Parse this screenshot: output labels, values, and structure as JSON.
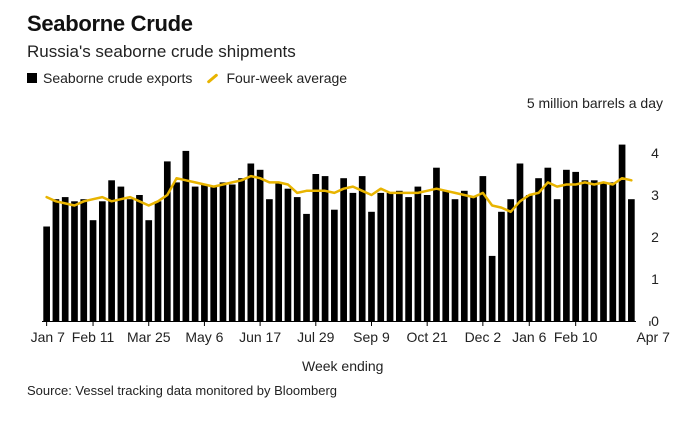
{
  "chart_data": {
    "type": "bar",
    "title": "Seaborne Crude",
    "subtitle": "Russia's seaborne crude shipments",
    "legend": {
      "bars_label": "Seaborne crude exports",
      "line_label": "Four-week average"
    },
    "unit_label": "5 million barrels a day",
    "xlabel": "Week ending",
    "ylabel": "",
    "ylim": [
      0,
      4.5
    ],
    "yticks": [
      "0",
      "1",
      "2",
      "3",
      "4"
    ],
    "xtick_labels": [
      {
        "label": "Jan 7",
        "index": 0
      },
      {
        "label": "Feb 11",
        "index": 5
      },
      {
        "label": "Mar 25",
        "index": 11
      },
      {
        "label": "May 6",
        "index": 17
      },
      {
        "label": "Jun 17",
        "index": 23
      },
      {
        "label": "Jul 29",
        "index": 29
      },
      {
        "label": "Sep 9",
        "index": 35
      },
      {
        "label": "Oct 21",
        "index": 41
      },
      {
        "label": "Dec 2",
        "index": 47
      },
      {
        "label": "Jan 6",
        "index": 52
      },
      {
        "label": "Feb 10",
        "index": 57
      },
      {
        "label": "Apr 7",
        "index": 65
      }
    ],
    "series": [
      {
        "name": "Seaborne crude exports",
        "kind": "bar",
        "color": "#000000",
        "values": [
          2.25,
          2.9,
          2.95,
          2.85,
          2.9,
          2.4,
          2.85,
          3.35,
          3.2,
          2.9,
          3.0,
          2.4,
          2.85,
          3.8,
          3.3,
          4.05,
          3.2,
          3.25,
          3.2,
          3.3,
          3.25,
          3.4,
          3.75,
          3.6,
          2.9,
          3.3,
          3.15,
          2.95,
          2.55,
          3.5,
          3.45,
          2.65,
          3.4,
          3.05,
          3.45,
          2.6,
          3.05,
          3.05,
          3.1,
          2.95,
          3.2,
          3.0,
          3.65,
          3.1,
          2.9,
          3.1,
          2.95,
          3.45,
          1.55,
          2.6,
          2.9,
          3.75,
          3.0,
          3.4,
          3.65,
          2.9,
          3.6,
          3.55,
          3.35,
          3.35,
          3.3,
          3.3,
          4.2,
          2.9
        ]
      },
      {
        "name": "Four-week average",
        "kind": "line",
        "color": "#e8b400",
        "values": [
          2.95,
          2.85,
          2.8,
          2.75,
          2.85,
          2.9,
          2.95,
          2.85,
          2.9,
          2.95,
          2.85,
          2.75,
          2.85,
          3.0,
          3.4,
          3.35,
          3.3,
          3.25,
          3.2,
          3.25,
          3.3,
          3.35,
          3.45,
          3.4,
          3.3,
          3.3,
          3.25,
          3.05,
          3.1,
          3.1,
          3.1,
          3.05,
          3.15,
          3.2,
          3.1,
          3.0,
          3.15,
          3.05,
          3.05,
          3.05,
          3.05,
          3.1,
          3.15,
          3.1,
          3.05,
          3.0,
          2.95,
          3.05,
          2.75,
          2.7,
          2.6,
          2.85,
          3.0,
          3.05,
          3.3,
          3.2,
          3.25,
          3.25,
          3.3,
          3.25,
          3.3,
          3.25,
          3.4,
          3.35
        ]
      }
    ]
  },
  "source_text": "Source: Vessel tracking data monitored by Bloomberg"
}
